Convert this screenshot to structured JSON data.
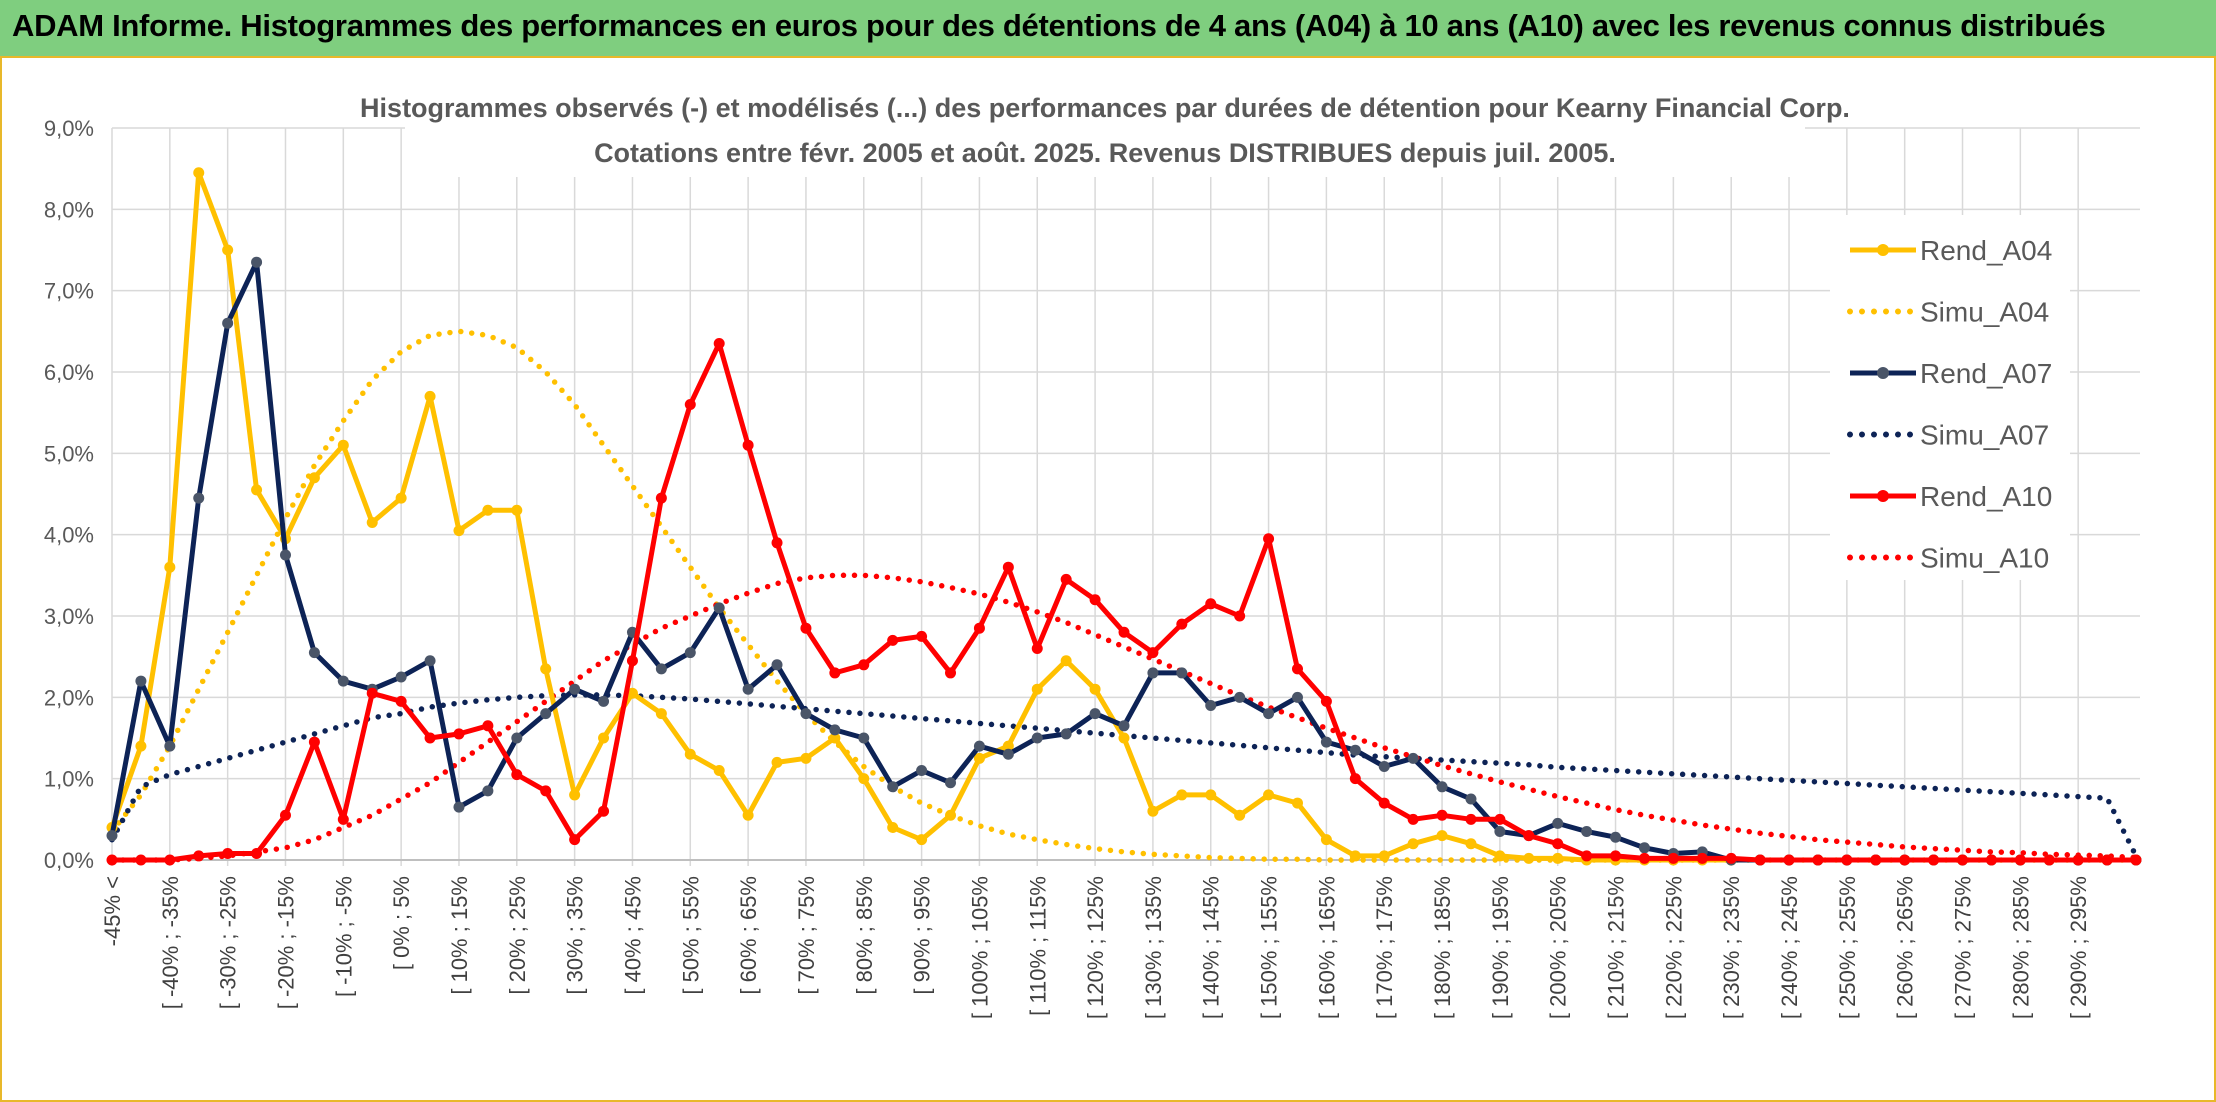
{
  "banner": {
    "title": "ADAM Informe. Histogrammes des performances en euros pour des détentions de 4 ans (A04) à 10 ans (A10) avec les revenus connus distribués"
  },
  "colors": {
    "banner_bg": "#7fce7f",
    "border": "#e8b82a",
    "A04": "#ffc000",
    "A07": "#0d2356",
    "A10": "#ff0000",
    "grid": "#d9d9d9"
  },
  "chart_data": {
    "type": "line",
    "title": "Histogrammes observés (-) et modélisés (...) des performances par durées de détention pour Kearny Financial Corp.",
    "subtitle": "Cotations entre févr. 2005 et août. 2025. Revenus DISTRIBUES depuis juil. 2005.",
    "ylim": [
      0,
      9
    ],
    "y_ticks": [
      "0,0%",
      "1,0%",
      "2,0%",
      "3,0%",
      "4,0%",
      "5,0%",
      "6,0%",
      "7,0%",
      "8,0%",
      "9,0%"
    ],
    "grid": true,
    "legend_position": "right",
    "x_tick_labels": [
      "-45% <",
      "[ -40% ; -35%",
      "[ -30% ; -25%",
      "[ -20% ; -15%",
      "[ -10% ; -5%",
      "[ 0% ; 5%",
      "[ 10% ; 15%",
      "[ 20% ; 25%",
      "[ 30% ; 35%",
      "[ 40% ; 45%",
      "[ 50% ; 55%",
      "[ 60% ; 65%",
      "[ 70% ; 75%",
      "[ 80% ; 85%",
      "[ 90% ; 95%",
      "[ 100% ; 105%",
      "[ 110% ; 115%",
      "[ 120% ; 125%",
      "[ 130% ; 135%",
      "[ 140% ; 145%",
      "[ 150% ; 155%",
      "[ 160% ; 165%",
      "[ 170% ; 175%",
      "[ 180% ; 185%",
      "[ 190% ; 195%",
      "[ 200% ; 205%",
      "[ 210% ; 215%",
      "[ 220% ; 225%",
      "[ 230% ; 235%",
      "[ 240% ; 245%",
      "[ 250% ; 255%",
      "[ 260% ; 265%",
      "[ 270% ; 275%",
      "[ 280% ; 285%",
      "[ 290% ; 295%"
    ],
    "series": [
      {
        "name": "Rend_A04",
        "style": "solid",
        "color": "#ffc000",
        "values": [
          0.4,
          1.4,
          3.6,
          8.45,
          7.5,
          4.55,
          3.95,
          4.7,
          5.1,
          4.15,
          4.45,
          5.7,
          4.05,
          4.3,
          4.3,
          2.35,
          0.8,
          1.5,
          2.05,
          1.8,
          1.3,
          1.1,
          0.55,
          1.2,
          1.25,
          1.5,
          1.0,
          0.4,
          0.25,
          0.55,
          1.25,
          1.4,
          2.1,
          2.45,
          2.1,
          1.5,
          0.6,
          0.8,
          0.8,
          0.55,
          0.8,
          0.7,
          0.25,
          0.05,
          0.05,
          0.2,
          0.3,
          0.2,
          0.05,
          0.02,
          0.02,
          0,
          0,
          0,
          0,
          0,
          0,
          0,
          0,
          0,
          0,
          0,
          0,
          0,
          0,
          0,
          0,
          0,
          0,
          0,
          0
        ]
      },
      {
        "name": "Simu_A04",
        "style": "dotted",
        "color": "#ffc000",
        "values": [
          0.35,
          0.8,
          1.4,
          2.1,
          2.8,
          3.5,
          4.2,
          4.85,
          5.4,
          5.9,
          6.25,
          6.45,
          6.5,
          6.45,
          6.3,
          6.0,
          5.6,
          5.1,
          4.6,
          4.1,
          3.6,
          3.1,
          2.65,
          2.2,
          1.8,
          1.45,
          1.15,
          0.9,
          0.7,
          0.55,
          0.42,
          0.32,
          0.25,
          0.19,
          0.14,
          0.1,
          0.07,
          0.05,
          0.03,
          0.02,
          0.01,
          0.01,
          0,
          0,
          0,
          0,
          0,
          0,
          0,
          0,
          0,
          0,
          0,
          0,
          0,
          0,
          0,
          0,
          0,
          0,
          0,
          0,
          0,
          0,
          0,
          0,
          0,
          0,
          0,
          0,
          0
        ]
      },
      {
        "name": "Rend_A07",
        "style": "solid",
        "color": "#0d2356",
        "values": [
          0.3,
          2.2,
          1.4,
          4.45,
          6.6,
          7.35,
          3.75,
          2.55,
          2.2,
          2.1,
          2.25,
          2.45,
          0.65,
          0.85,
          1.5,
          1.8,
          2.1,
          1.95,
          2.8,
          2.35,
          2.55,
          3.1,
          2.1,
          2.4,
          1.8,
          1.6,
          1.5,
          0.9,
          1.1,
          0.95,
          1.4,
          1.3,
          1.5,
          1.55,
          1.8,
          1.65,
          2.3,
          2.3,
          1.9,
          2.0,
          1.8,
          2.0,
          1.45,
          1.35,
          1.15,
          1.25,
          0.9,
          0.75,
          0.35,
          0.3,
          0.45,
          0.35,
          0.28,
          0.15,
          0.08,
          0.1,
          0,
          0,
          0,
          0,
          0,
          0,
          0,
          0,
          0,
          0,
          0,
          0,
          0,
          0,
          0
        ]
      },
      {
        "name": "Simu_A07",
        "style": "dotted",
        "color": "#0d2356",
        "values": [
          0.25,
          0.9,
          1.05,
          1.15,
          1.25,
          1.35,
          1.45,
          1.55,
          1.65,
          1.75,
          1.8,
          1.88,
          1.93,
          1.97,
          2.0,
          2.02,
          2.03,
          2.03,
          2.02,
          2.0,
          1.98,
          1.95,
          1.92,
          1.89,
          1.86,
          1.83,
          1.8,
          1.77,
          1.74,
          1.71,
          1.68,
          1.65,
          1.62,
          1.59,
          1.56,
          1.53,
          1.5,
          1.47,
          1.44,
          1.41,
          1.38,
          1.35,
          1.32,
          1.29,
          1.27,
          1.25,
          1.23,
          1.21,
          1.19,
          1.17,
          1.14,
          1.12,
          1.1,
          1.08,
          1.06,
          1.04,
          1.02,
          1.0,
          0.98,
          0.96,
          0.94,
          0.92,
          0.9,
          0.88,
          0.86,
          0.84,
          0.82,
          0.8,
          0.78,
          0.76,
          0.05
        ]
      },
      {
        "name": "Rend_A10",
        "style": "solid",
        "color": "#ff0000",
        "values": [
          0,
          0,
          0,
          0.05,
          0.08,
          0.08,
          0.55,
          1.45,
          0.5,
          2.05,
          1.95,
          1.5,
          1.55,
          1.65,
          1.05,
          0.85,
          0.25,
          0.6,
          2.45,
          4.45,
          5.6,
          6.35,
          5.1,
          3.9,
          2.85,
          2.3,
          2.4,
          2.7,
          2.75,
          2.3,
          2.85,
          3.6,
          2.6,
          3.45,
          3.2,
          2.8,
          2.55,
          2.9,
          3.15,
          3.0,
          3.95,
          2.35,
          1.95,
          1.0,
          0.7,
          0.5,
          0.55,
          0.5,
          0.5,
          0.3,
          0.2,
          0.05,
          0.05,
          0.02,
          0.02,
          0.02,
          0.02,
          0,
          0,
          0,
          0,
          0,
          0,
          0,
          0,
          0,
          0,
          0,
          0,
          0,
          0
        ]
      },
      {
        "name": "Simu_A10",
        "style": "dotted",
        "color": "#ff0000",
        "values": [
          0,
          0,
          0,
          0.02,
          0.05,
          0.1,
          0.15,
          0.25,
          0.4,
          0.55,
          0.75,
          0.95,
          1.2,
          1.45,
          1.7,
          1.95,
          2.2,
          2.45,
          2.65,
          2.85,
          3.0,
          3.15,
          3.28,
          3.4,
          3.47,
          3.5,
          3.5,
          3.47,
          3.42,
          3.35,
          3.27,
          3.17,
          3.05,
          2.92,
          2.77,
          2.62,
          2.47,
          2.32,
          2.17,
          2.02,
          1.88,
          1.75,
          1.62,
          1.5,
          1.38,
          1.27,
          1.16,
          1.06,
          0.96,
          0.87,
          0.78,
          0.7,
          0.62,
          0.55,
          0.49,
          0.43,
          0.38,
          0.33,
          0.29,
          0.25,
          0.22,
          0.19,
          0.16,
          0.14,
          0.12,
          0.1,
          0.09,
          0.07,
          0.06,
          0.05,
          0.03
        ]
      }
    ]
  }
}
